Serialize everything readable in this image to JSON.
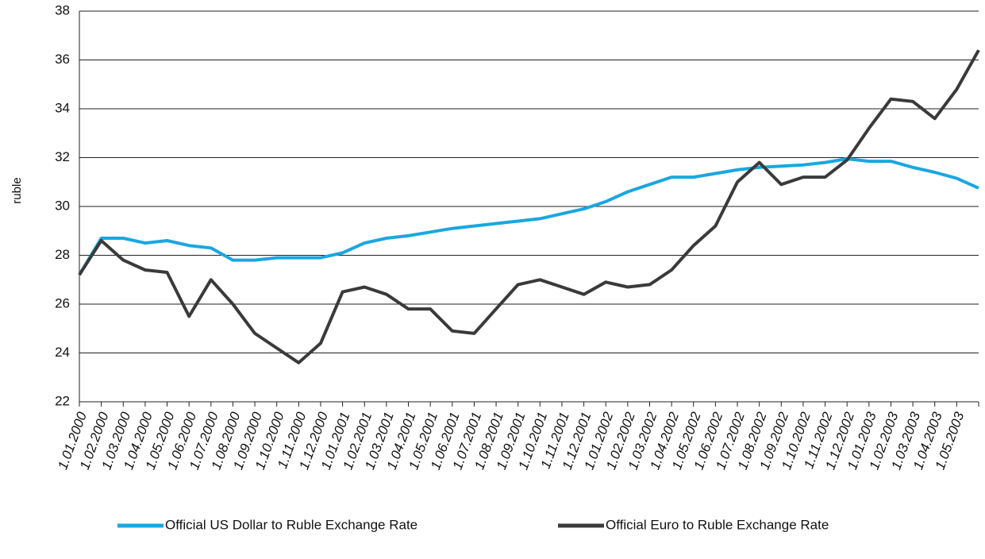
{
  "chart_data": {
    "type": "line",
    "y_label": "ruble",
    "categories": [
      "1.01.2000",
      "1.02.2000",
      "1.03.2000",
      "1.04.2000",
      "1.05.2000",
      "1.06.2000",
      "1.07.2000",
      "1.08.2000",
      "1.09.2000",
      "1.10.2000",
      "1.11.2000",
      "1.12.2000",
      "1.01.2001",
      "1.02.2001",
      "1.03.2001",
      "1.04.2001",
      "1.05.2001",
      "1.06.2001",
      "1.07.2001",
      "1.08.2001",
      "1.09.2001",
      "1.10.2001",
      "1.11.2001",
      "1.12.2001",
      "1.01.2002",
      "1.02.2002",
      "1.03.2002",
      "1.04.2002",
      "1.05.2002",
      "1.06.2002",
      "1.07.2002",
      "1.08.2002",
      "1.09.2002",
      "1.10.2002",
      "1.11.2002",
      "1.12.2002",
      "1.01.2003",
      "1.02.2003",
      "1.03.2003",
      "1.04.2003",
      "1.05.2003",
      null
    ],
    "series": [
      {
        "name": "Official US Dollar to Ruble Exchange Rate",
        "color": "#1aa7e0",
        "values": [
          27.2,
          28.7,
          28.7,
          28.5,
          28.6,
          28.4,
          28.3,
          27.8,
          27.8,
          27.9,
          27.9,
          27.9,
          28.1,
          28.5,
          28.7,
          28.8,
          28.95,
          29.1,
          29.2,
          29.3,
          29.4,
          29.5,
          29.7,
          29.9,
          30.2,
          30.6,
          30.9,
          31.2,
          31.2,
          31.35,
          31.5,
          31.6,
          31.65,
          31.7,
          31.8,
          31.95,
          31.85,
          31.85,
          31.6,
          31.4,
          31.15,
          30.75
        ]
      },
      {
        "name": "Official Euro to Ruble Exchange Rate",
        "color": "#3a3a3a",
        "values": [
          27.2,
          28.6,
          27.8,
          27.4,
          27.3,
          25.5,
          27.0,
          26.0,
          24.8,
          24.2,
          23.6,
          24.4,
          26.5,
          26.7,
          26.4,
          25.8,
          25.8,
          24.9,
          24.8,
          25.8,
          26.8,
          27.0,
          26.7,
          26.4,
          26.9,
          26.7,
          26.8,
          27.4,
          28.4,
          29.2,
          31.0,
          31.8,
          30.9,
          31.2,
          31.2,
          31.9,
          33.2,
          34.4,
          34.3,
          33.6,
          34.8,
          36.4
        ]
      }
    ],
    "ylim": [
      22,
      38
    ],
    "yticks": [
      22,
      24,
      26,
      28,
      30,
      32,
      34,
      36,
      38
    ],
    "grid": true
  }
}
